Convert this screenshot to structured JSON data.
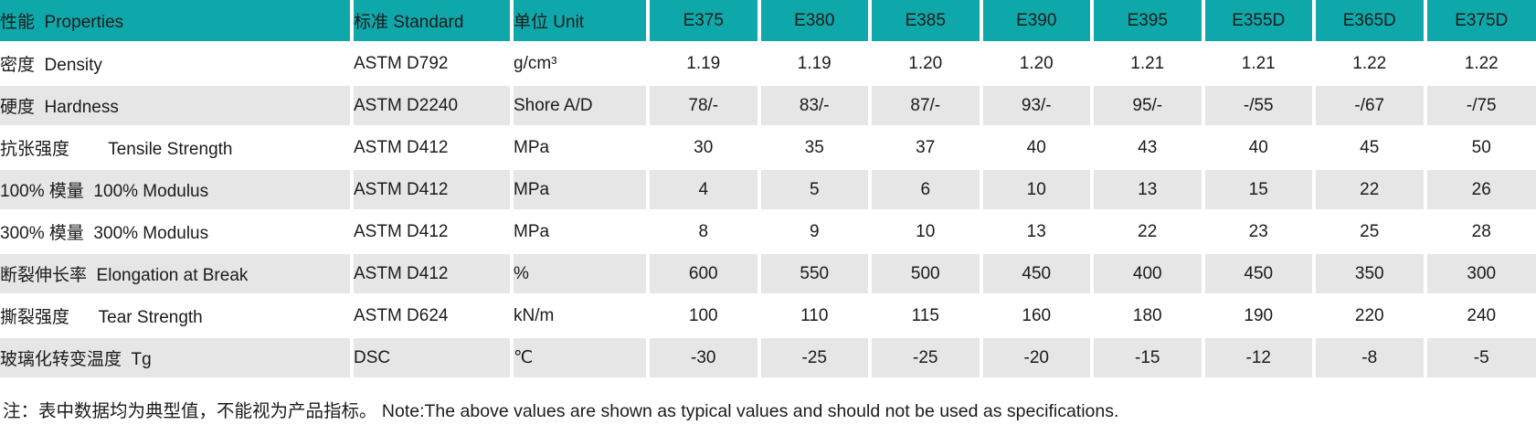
{
  "colors": {
    "header_bg": "#0fa8aa",
    "row_alt_bg": "#e6e6e6",
    "row_bg": "#ffffff",
    "text": "#1b1b1b"
  },
  "table": {
    "header": {
      "property": "性能  Properties",
      "standard": "标准 Standard",
      "unit": "单位 Unit",
      "grades": [
        "E375",
        "E380",
        "E385",
        "E390",
        "E395",
        "E355D",
        "E365D",
        "E375D"
      ]
    },
    "rows": [
      {
        "property": "密度  Density",
        "standard": "ASTM D792",
        "unit": "g/cm³",
        "values": [
          "1.19",
          "1.19",
          "1.20",
          "1.20",
          "1.21",
          "1.21",
          "1.22",
          "1.22"
        ]
      },
      {
        "property": "硬度  Hardness",
        "standard": "ASTM D2240",
        "unit": "Shore A/D",
        "values": [
          "78/-",
          "83/-",
          "87/-",
          "93/-",
          "95/-",
          "-/55",
          "-/67",
          "-/75"
        ]
      },
      {
        "property": "抗张强度        Tensile Strength",
        "standard": "ASTM D412",
        "unit": "MPa",
        "values": [
          "30",
          "35",
          "37",
          "40",
          "43",
          "40",
          "45",
          "50"
        ]
      },
      {
        "property": "100% 模量  100% Modulus",
        "standard": "ASTM D412",
        "unit": "MPa",
        "values": [
          "4",
          "5",
          "6",
          "10",
          "13",
          "15",
          "22",
          "26"
        ]
      },
      {
        "property": "300% 模量  300% Modulus",
        "standard": "ASTM D412",
        "unit": "MPa",
        "values": [
          "8",
          "9",
          "10",
          "13",
          "22",
          "23",
          "25",
          "28"
        ]
      },
      {
        "property": "断裂伸长率  Elongation at Break",
        "standard": "ASTM D412",
        "unit": "%",
        "values": [
          "600",
          "550",
          "500",
          "450",
          "400",
          "450",
          "350",
          "300"
        ]
      },
      {
        "property": "撕裂强度      Tear Strength",
        "standard": "ASTM D624",
        "unit": "kN/m",
        "values": [
          "100",
          "110",
          "115",
          "160",
          "180",
          "190",
          "220",
          "240"
        ]
      },
      {
        "property": "玻璃化转变温度  Tg",
        "standard": "DSC",
        "unit": "℃",
        "values": [
          "-30",
          "-25",
          "-25",
          "-20",
          "-15",
          "-12",
          "-8",
          "-5"
        ]
      }
    ]
  },
  "note": "注：表中数据均为典型值，不能视为产品指标。 Note:The above values are shown as typical values and should not be used as specifications."
}
